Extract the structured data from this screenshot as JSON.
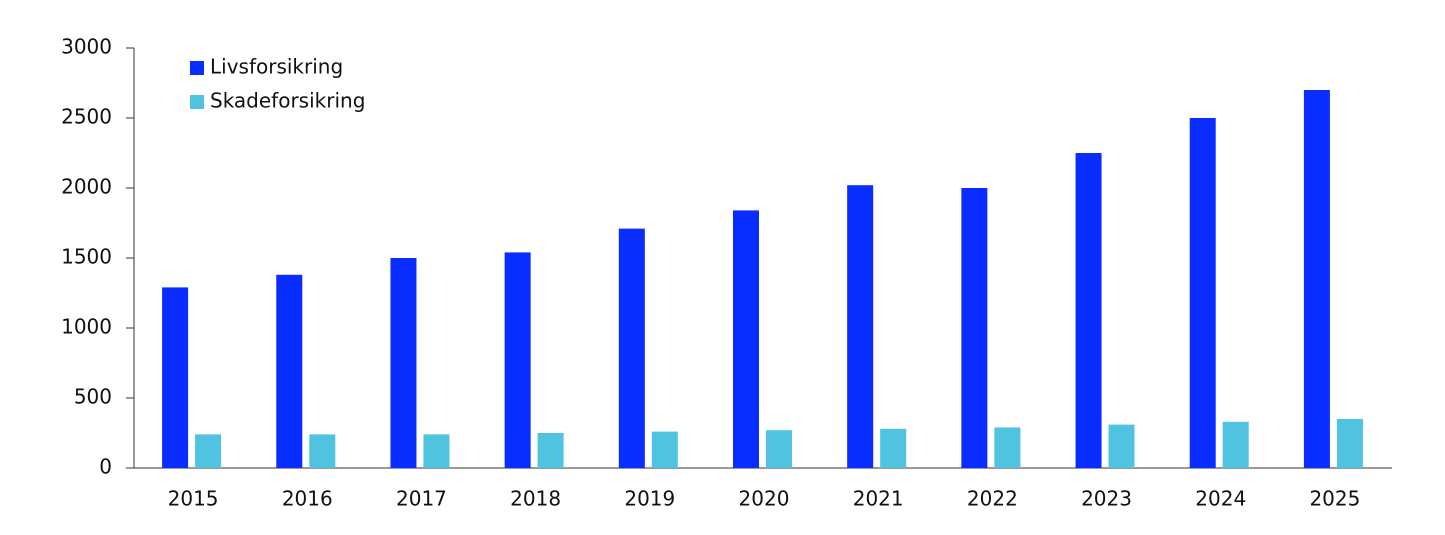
{
  "chart_data": {
    "type": "bar",
    "categories": [
      "2015",
      "2016",
      "2017",
      "2018",
      "2019",
      "2020",
      "2021",
      "2022",
      "2023",
      "2024",
      "2025"
    ],
    "series": [
      {
        "name": "Livsforsikring",
        "color": "#0a2dff",
        "values": [
          1290,
          1380,
          1500,
          1540,
          1710,
          1840,
          2020,
          2000,
          2250,
          2500,
          2700
        ]
      },
      {
        "name": "Skadeforsikring",
        "color": "#4fc3e0",
        "values": [
          240,
          240,
          240,
          250,
          260,
          270,
          280,
          290,
          310,
          330,
          350
        ]
      }
    ],
    "ylim": [
      0,
      3000
    ],
    "yticks": [
      0,
      500,
      1000,
      1500,
      2000,
      2500,
      3000
    ],
    "grid": false,
    "legend": "top-left"
  }
}
